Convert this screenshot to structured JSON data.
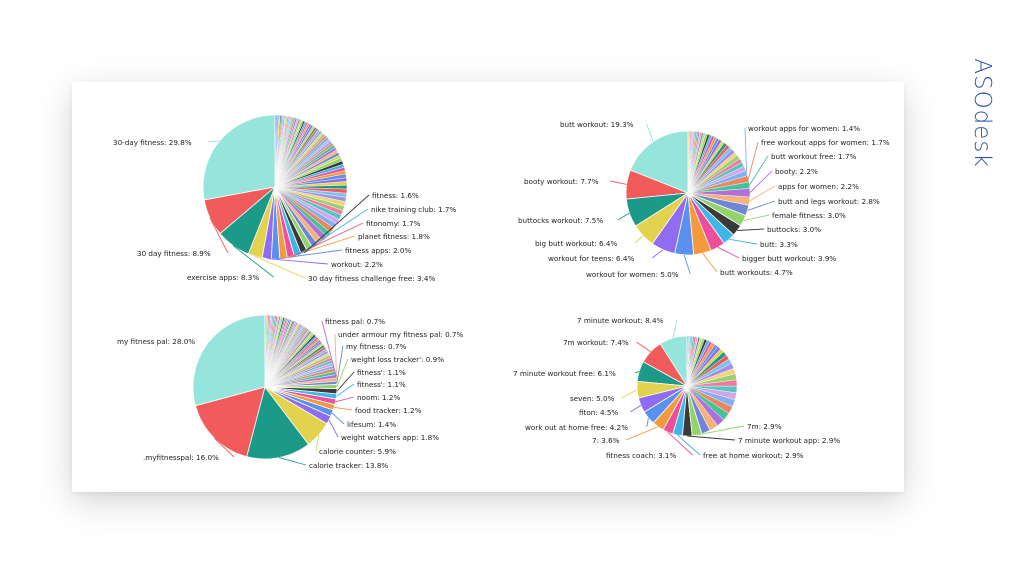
{
  "brand": {
    "logo_text": "ASOdesk",
    "color": "#2e4fa8"
  },
  "palette": [
    "#f15b5b",
    "#1b9a8a",
    "#e2d24e",
    "#8f6cf0",
    "#5b8ff0",
    "#f59a3c",
    "#ef4f9a",
    "#3fb6e8",
    "#3a3a3a",
    "#92d36b",
    "#c0e06a",
    "#6f86d6",
    "#f4b37b",
    "#b06fd9",
    "#46c29a",
    "#e7875f",
    "#7fb0f2",
    "#d5a4e8",
    "#53c6c2",
    "#f07aa0",
    "#9ad06f",
    "#f1d37e",
    "#a18ee9",
    "#78c4ea"
  ],
  "chart_data": [
    {
      "type": "pie",
      "title": "",
      "series": [
        {
          "values": [
            29.8,
            8.9,
            8.3,
            3.4,
            2.2,
            2.0,
            1.8,
            1.7,
            1.7,
            1.6,
            1.5,
            1.5,
            1.4,
            1.4,
            1.3,
            1.3,
            1.2,
            1.2,
            1.2,
            1.1,
            1.1,
            1.1,
            1.0,
            1.0,
            1.0,
            0.9,
            0.9,
            0.9,
            0.9,
            0.8,
            0.8,
            0.8,
            0.8,
            0.8,
            0.7,
            0.7,
            0.7,
            0.7,
            0.7,
            0.6,
            0.6,
            0.6,
            0.6,
            0.6,
            0.6,
            0.5,
            0.5,
            0.5,
            0.5,
            0.5,
            0.5,
            0.5,
            0.5,
            0.4,
            0.4,
            0.4,
            0.4,
            0.4,
            0.4,
            0.4,
            0.4,
            0.4,
            0.4,
            0.3,
            0.3,
            0.3,
            0.3,
            0.3,
            0.3,
            0.3,
            0.3,
            0.3,
            0.3,
            0.3,
            0.3,
            0.3,
            0.3,
            0.3
          ],
          "labels": [
            "30-day fitness: 29.8%",
            "30 day fitness: 8.9%",
            "exercise apps: 8.3%",
            "30 day fitness challenge free: 3.4%",
            "workout: 2.2%",
            "fitness apps: 2.0%",
            "planet fitness: 1.8%",
            "fitonomy: 1.7%",
            "nike training club: 1.7%",
            "fitness: 1.6%"
          ]
        }
      ]
    },
    {
      "type": "pie",
      "title": "",
      "series": [
        {
          "values": [
            19.3,
            7.7,
            7.5,
            6.4,
            6.4,
            5.0,
            4.7,
            3.9,
            3.3,
            3.0,
            3.0,
            2.8,
            2.2,
            2.2,
            1.7,
            1.7,
            1.4,
            1.2,
            1.2,
            1.1,
            1.1,
            1.0,
            1.0,
            0.9,
            0.9,
            0.9,
            0.8,
            0.8,
            0.7,
            0.7,
            0.7,
            0.6,
            0.6,
            0.6,
            0.5,
            0.5,
            0.5,
            0.4,
            0.4,
            0.4,
            0.4,
            0.3,
            0.3,
            0.3,
            0.3,
            0.3
          ],
          "labels": [
            "butt workout: 19.3%",
            "booty workout: 7.7%",
            "buttocks workout: 7.5%",
            "big butt workout: 6.4%",
            "workout for teens: 6.4%",
            "workout for women: 5.0%",
            "butt workouts: 4.7%",
            "bigger butt workout: 3.9%",
            "butt: 3.3%",
            "buttocks: 3.0%",
            "female fitness: 3.0%",
            "butt and legs workout: 2.8%",
            "apps for women: 2.2%",
            "booty: 2.2%",
            "butt workout free: 1.7%",
            "free workout apps for women: 1.7%",
            "workout apps for women: 1.4%"
          ]
        }
      ]
    },
    {
      "type": "pie",
      "title": "",
      "series": [
        {
          "values": [
            28.0,
            16.0,
            13.8,
            5.9,
            1.8,
            1.4,
            1.2,
            1.2,
            1.1,
            1.1,
            0.9,
            0.7,
            0.7,
            0.7,
            0.7,
            0.7,
            0.6,
            0.6,
            0.6,
            0.6,
            0.6,
            0.5,
            0.5,
            0.5,
            0.5,
            0.5,
            0.5,
            0.4,
            0.4,
            0.4,
            0.4,
            0.4,
            0.4,
            0.4,
            0.4,
            0.4,
            0.4,
            0.3,
            0.3,
            0.3,
            0.3,
            0.3,
            0.3,
            0.3,
            0.3,
            0.3,
            0.3,
            0.3,
            0.3,
            0.3,
            0.3,
            0.3,
            0.3,
            0.3,
            0.3,
            0.3,
            0.3,
            0.3,
            0.3,
            0.3,
            0.3,
            0.3,
            0.3,
            0.3,
            0.3,
            0.3,
            0.3,
            0.3,
            0.3,
            0.3
          ],
          "labels": [
            "my fitness pal: 28.0%",
            ".myfitnesspal: 16.0%",
            "calorie tracker: 13.8%",
            "calorie counter: 5.9%",
            "weight watchers app: 1.8%",
            "lifesum: 1.4%",
            "food tracker: 1.2%",
            "noom: 1.2%",
            "fitness': 1.1%",
            "fitness': 1.1%",
            "weight loss tracker': 0.9%",
            "my fitness: 0.7%",
            "under armour my fitness pal: 0.7%",
            "fitness pal: 0.7%"
          ]
        }
      ]
    },
    {
      "type": "pie",
      "title": "",
      "series": [
        {
          "values": [
            8.4,
            7.4,
            6.1,
            5.0,
            4.5,
            4.2,
            3.6,
            3.1,
            2.9,
            2.9,
            2.9,
            2.7,
            2.6,
            2.5,
            2.4,
            2.3,
            2.2,
            2.1,
            2.0,
            1.9,
            1.8,
            1.7,
            1.6,
            1.5,
            1.4,
            1.3,
            1.2,
            1.1,
            1.0,
            1.0,
            0.9,
            0.8,
            0.8,
            0.7,
            0.7,
            0.6,
            0.6,
            0.5,
            0.5,
            0.4,
            0.4,
            0.3,
            0.3,
            0.3
          ],
          "labels": [
            "7 minute workout: 8.4%",
            "7m workout: 7.4%",
            "7 minute workout free: 6.1%",
            "seven: 5.0%",
            "fiton: 4.5%",
            "work out at home free: 4.2%",
            "7: 3.6%",
            "fitness coach: 3.1%",
            "free at home workout: 2.9%",
            "7 minute workout app: 2.9%",
            "7m: 2.9%"
          ]
        }
      ]
    }
  ]
}
